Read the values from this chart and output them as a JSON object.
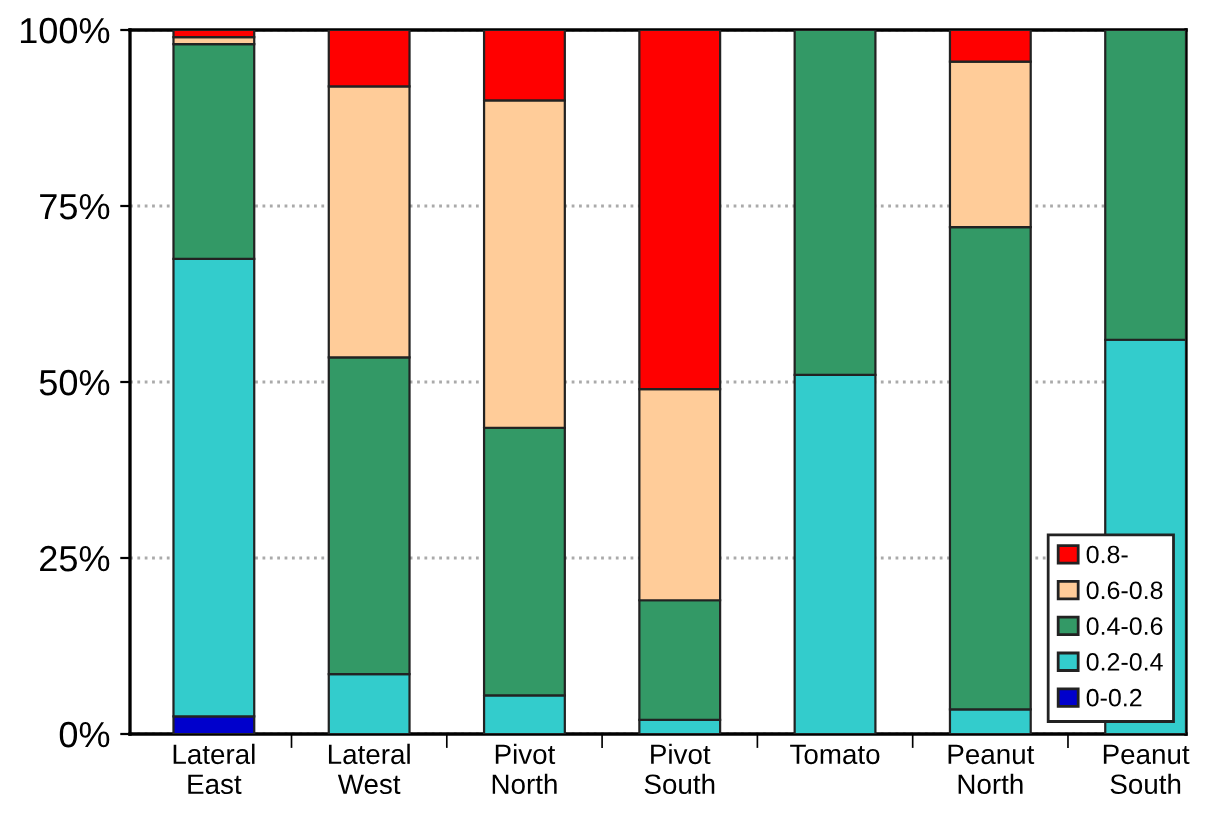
{
  "chart_data": {
    "type": "bar",
    "stacked": true,
    "categories": [
      "Lateral\nEast",
      "Lateral\nWest",
      "Pivot\nNorth",
      "Pivot\nSouth",
      "Tomato",
      "Peanut\nNorth",
      "Peanut\nSouth"
    ],
    "series": [
      {
        "name": "0-0.2",
        "color": "#0000cc",
        "values": [
          2.5,
          null,
          0,
          0,
          0,
          0,
          0
        ]
      },
      {
        "name": "0.2-0.4",
        "color": "#33cccc",
        "values": [
          65,
          8.5,
          5.5,
          2,
          51,
          3.5,
          56
        ]
      },
      {
        "name": "0.4-0.6",
        "color": "#339966",
        "values": [
          30.5,
          45,
          38,
          17,
          49,
          68.5,
          44
        ]
      },
      {
        "name": "0.6-0.8",
        "color": "#ffcc99",
        "values": [
          1,
          38.5,
          46.5,
          30,
          0,
          23.5,
          0
        ]
      },
      {
        "name": "0.8-",
        "color": "#ff0000",
        "values": [
          1,
          8,
          10,
          51,
          0,
          4.5,
          0
        ]
      }
    ],
    "ylim": [
      0,
      100
    ],
    "yticks": [
      {
        "value": 0,
        "label": "0%"
      },
      {
        "value": 25,
        "label": "25%"
      },
      {
        "value": 50,
        "label": "50%"
      },
      {
        "value": 75,
        "label": "75%"
      },
      {
        "value": 100,
        "label": "100%"
      }
    ],
    "grid": "y",
    "legend": "bottom right"
  }
}
